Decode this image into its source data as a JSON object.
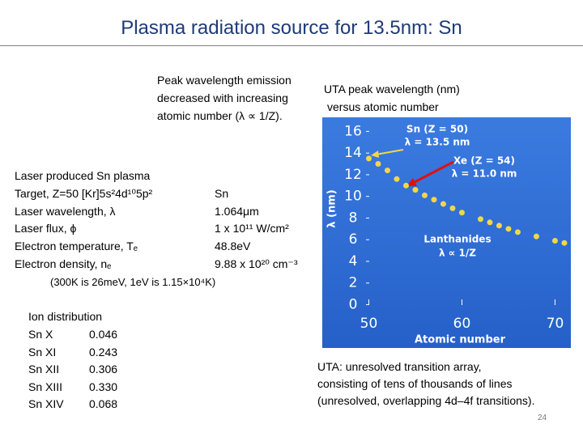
{
  "title": "Plasma radiation source for 13.5nm: Sn",
  "peak_note": [
    "Peak wavelength emission",
    "decreased with increasing",
    "atomic number (λ ∝ 1/Z)."
  ],
  "uta_heading": [
    "UTA peak wavelength (nm)",
    "versus  atomic number"
  ],
  "plasma": {
    "heading": "Laser produced Sn plasma",
    "rows": [
      [
        "Target, Z=50 [Kr]5s²4d¹⁰5p²",
        "Sn"
      ],
      [
        "Laser wavelength, λ",
        "1.064μm"
      ],
      [
        "Laser flux, ϕ",
        "1 x 10¹¹ W/cm²"
      ],
      [
        "Electron temperature, Tₑ",
        "48.8eV"
      ],
      [
        "Electron density, nₑ",
        "9.88 x 10²⁰ cm⁻³"
      ]
    ],
    "conversion": "(300K is 26meV, 1eV is 1.15×10⁴K)"
  },
  "ion_distribution": {
    "heading": "Ion distribution",
    "rows": [
      [
        "Sn X",
        "0.046"
      ],
      [
        "Sn XI",
        "0.243"
      ],
      [
        "Sn XII",
        "0.306"
      ],
      [
        "Sn XIII",
        "0.330"
      ],
      [
        "Sn XIV",
        "0.068"
      ]
    ]
  },
  "footnote": [
    "UTA: unresolved transition array,",
    "consisting of tens of thousands of lines",
    "(unresolved, overlapping 4d–4f transitions)."
  ],
  "page_number": "24",
  "chart_data": {
    "type": "scatter",
    "x_label": "Atomic number",
    "y_label": "λ (nm)",
    "annotations": [
      "Sn (Z = 50)",
      "λ = 13.5 nm",
      "Xe (Z = 54)",
      "λ = 11.0 nm",
      "Lanthanides",
      "λ ∝ 1/Z"
    ],
    "x": [
      50,
      51,
      52,
      53,
      54,
      55,
      56,
      57,
      58,
      59,
      60,
      62,
      63,
      64,
      65,
      66,
      68,
      70,
      71
    ],
    "values": [
      13.5,
      13.0,
      12.4,
      11.6,
      11.0,
      10.6,
      10.1,
      9.7,
      9.3,
      8.9,
      8.5,
      7.9,
      7.6,
      7.3,
      7.0,
      6.7,
      6.3,
      5.9,
      5.7
    ],
    "color": "#f2d64a",
    "xlim": [
      45,
      71.7
    ],
    "ylim": [
      -4,
      17.3
    ],
    "xticks": [
      50,
      60,
      70
    ],
    "yticks": [
      0,
      2,
      4,
      6,
      8,
      10,
      12,
      14,
      16
    ]
  }
}
